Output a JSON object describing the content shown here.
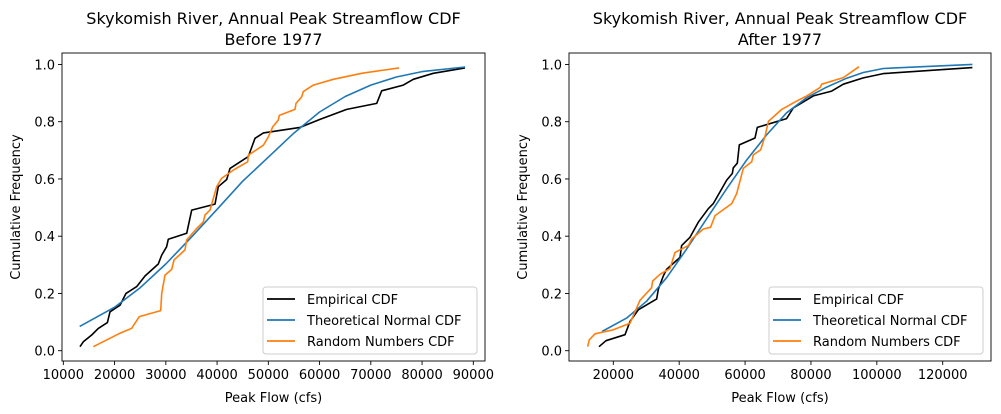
{
  "chart_data": [
    {
      "type": "line",
      "title": "Skykomish River, Annual Peak Streamflow CDF",
      "subtitle": "Before 1977",
      "xlabel": "Peak Flow (cfs)",
      "ylabel": "Cumulative Frequency",
      "xlim": [
        9740,
        92280
      ],
      "ylim": [
        -0.036,
        1.04
      ],
      "xticks": [
        10000,
        20000,
        30000,
        40000,
        50000,
        60000,
        70000,
        80000,
        90000
      ],
      "yticks": [
        0.0,
        0.2,
        0.4,
        0.6,
        0.8,
        1.0
      ],
      "grid": false,
      "legend": "lower-right",
      "series": [
        {
          "name": "Empirical CDF",
          "color": "#000000",
          "points": [
            [
              13250,
              0.014
            ],
            [
              13900,
              0.031
            ],
            [
              15530,
              0.055
            ],
            [
              16830,
              0.078
            ],
            [
              18590,
              0.098
            ],
            [
              19100,
              0.136
            ],
            [
              21060,
              0.159
            ],
            [
              22230,
              0.2
            ],
            [
              24310,
              0.224
            ],
            [
              25940,
              0.261
            ],
            [
              28540,
              0.303
            ],
            [
              29190,
              0.334
            ],
            [
              30160,
              0.363
            ],
            [
              30490,
              0.389
            ],
            [
              34070,
              0.41
            ],
            [
              35050,
              0.491
            ],
            [
              39590,
              0.512
            ],
            [
              40240,
              0.573
            ],
            [
              41870,
              0.598
            ],
            [
              42520,
              0.637
            ],
            [
              46100,
              0.678
            ],
            [
              47400,
              0.742
            ],
            [
              49030,
              0.761
            ],
            [
              56180,
              0.78
            ],
            [
              60080,
              0.808
            ],
            [
              65290,
              0.843
            ],
            [
              71140,
              0.864
            ],
            [
              72120,
              0.908
            ],
            [
              76340,
              0.928
            ],
            [
              78290,
              0.948
            ],
            [
              82190,
              0.969
            ],
            [
              88370,
              0.988
            ]
          ]
        },
        {
          "name": "Theoretical Normal CDF",
          "color": "#1f77b4",
          "points": [
            [
              13200,
              0.085
            ],
            [
              20000,
              0.152
            ],
            [
              25000,
              0.22
            ],
            [
              30000,
              0.303
            ],
            [
              35000,
              0.397
            ],
            [
              40000,
              0.494
            ],
            [
              45000,
              0.592
            ],
            [
              50000,
              0.676
            ],
            [
              55000,
              0.76
            ],
            [
              60000,
              0.834
            ],
            [
              65000,
              0.888
            ],
            [
              70000,
              0.928
            ],
            [
              75000,
              0.956
            ],
            [
              80000,
              0.975
            ],
            [
              88400,
              0.991
            ]
          ]
        },
        {
          "name": "Random Numbers CDF",
          "color": "#ff7f0e",
          "points": [
            [
              15850,
              0.014
            ],
            [
              21060,
              0.061
            ],
            [
              23330,
              0.078
            ],
            [
              24830,
              0.119
            ],
            [
              28990,
              0.14
            ],
            [
              29190,
              0.2
            ],
            [
              29840,
              0.264
            ],
            [
              31140,
              0.284
            ],
            [
              31600,
              0.317
            ],
            [
              33740,
              0.352
            ],
            [
              34070,
              0.387
            ],
            [
              36020,
              0.427
            ],
            [
              37320,
              0.45
            ],
            [
              37640,
              0.474
            ],
            [
              38620,
              0.491
            ],
            [
              39920,
              0.573
            ],
            [
              40890,
              0.602
            ],
            [
              43170,
              0.631
            ],
            [
              45970,
              0.66
            ],
            [
              46100,
              0.683
            ],
            [
              49030,
              0.718
            ],
            [
              50000,
              0.747
            ],
            [
              50850,
              0.782
            ],
            [
              51950,
              0.806
            ],
            [
              52150,
              0.822
            ],
            [
              55210,
              0.843
            ],
            [
              55400,
              0.864
            ],
            [
              56510,
              0.887
            ],
            [
              56830,
              0.905
            ],
            [
              58780,
              0.928
            ],
            [
              62680,
              0.948
            ],
            [
              68210,
              0.969
            ],
            [
              75490,
              0.988
            ]
          ]
        }
      ]
    },
    {
      "type": "line",
      "title": "Skykomish River, Annual Peak Streamflow CDF",
      "subtitle": "After 1977",
      "xlabel": "Peak Flow (cfs)",
      "ylabel": "Cumulative Frequency",
      "xlim": [
        6550,
        134660
      ],
      "ylim": [
        -0.036,
        1.04
      ],
      "xticks": [
        20000,
        40000,
        60000,
        80000,
        100000,
        120000
      ],
      "yticks": [
        0.0,
        0.2,
        0.4,
        0.6,
        0.8,
        1.0
      ],
      "grid": false,
      "legend": "lower-right",
      "series": [
        {
          "name": "Empirical CDF",
          "color": "#000000",
          "points": [
            [
              15650,
              0.014
            ],
            [
              17770,
              0.035
            ],
            [
              23540,
              0.056
            ],
            [
              25060,
              0.102
            ],
            [
              27590,
              0.143
            ],
            [
              33160,
              0.181
            ],
            [
              33660,
              0.214
            ],
            [
              35180,
              0.261
            ],
            [
              36190,
              0.284
            ],
            [
              40240,
              0.326
            ],
            [
              40740,
              0.367
            ],
            [
              43270,
              0.396
            ],
            [
              45810,
              0.449
            ],
            [
              48840,
              0.496
            ],
            [
              50360,
              0.514
            ],
            [
              54410,
              0.596
            ],
            [
              56130,
              0.619
            ],
            [
              56430,
              0.639
            ],
            [
              57650,
              0.655
            ],
            [
              58250,
              0.719
            ],
            [
              63010,
              0.743
            ],
            [
              63720,
              0.78
            ],
            [
              72620,
              0.811
            ],
            [
              74650,
              0.848
            ],
            [
              80720,
              0.89
            ],
            [
              86290,
              0.907
            ],
            [
              89830,
              0.931
            ],
            [
              95900,
              0.953
            ],
            [
              101970,
              0.968
            ],
            [
              129000,
              0.989
            ]
          ]
        },
        {
          "name": "Theoretical Normal CDF",
          "color": "#1f77b4",
          "points": [
            [
              16560,
              0.067
            ],
            [
              24050,
              0.114
            ],
            [
              30120,
              0.173
            ],
            [
              36190,
              0.255
            ],
            [
              42260,
              0.355
            ],
            [
              48340,
              0.461
            ],
            [
              54410,
              0.566
            ],
            [
              60480,
              0.666
            ],
            [
              66550,
              0.754
            ],
            [
              72620,
              0.831
            ],
            [
              78700,
              0.884
            ],
            [
              84770,
              0.921
            ],
            [
              90840,
              0.952
            ],
            [
              95900,
              0.972
            ],
            [
              101970,
              0.986
            ],
            [
              129000,
              1.0
            ]
          ]
        },
        {
          "name": "Random Numbers CDF",
          "color": "#ff7f0e",
          "points": [
            [
              12210,
              0.014
            ],
            [
              12710,
              0.038
            ],
            [
              14430,
              0.059
            ],
            [
              20000,
              0.073
            ],
            [
              25060,
              0.096
            ],
            [
              28100,
              0.176
            ],
            [
              31640,
              0.22
            ],
            [
              31940,
              0.243
            ],
            [
              34170,
              0.267
            ],
            [
              37200,
              0.287
            ],
            [
              38720,
              0.343
            ],
            [
              42770,
              0.367
            ],
            [
              43780,
              0.39
            ],
            [
              47320,
              0.425
            ],
            [
              49550,
              0.431
            ],
            [
              50870,
              0.472
            ],
            [
              55930,
              0.514
            ],
            [
              57450,
              0.549
            ],
            [
              59470,
              0.637
            ],
            [
              62000,
              0.66
            ],
            [
              62510,
              0.684
            ],
            [
              64740,
              0.702
            ],
            [
              66050,
              0.749
            ],
            [
              67070,
              0.801
            ],
            [
              71110,
              0.843
            ],
            [
              75670,
              0.872
            ],
            [
              78700,
              0.89
            ],
            [
              82750,
              0.919
            ],
            [
              83250,
              0.931
            ],
            [
              89830,
              0.954
            ],
            [
              92870,
              0.978
            ],
            [
              94590,
              0.992
            ]
          ]
        }
      ]
    }
  ]
}
